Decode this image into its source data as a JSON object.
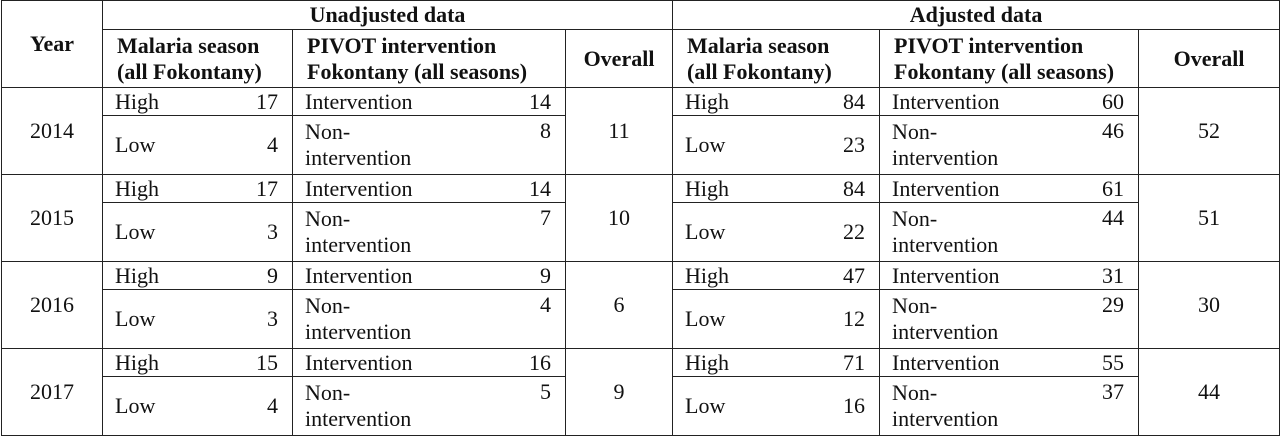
{
  "headers": {
    "year": "Year",
    "unadjusted": "Unadjusted data",
    "adjusted": "Adjusted data",
    "malaria_season": [
      "Malaria season",
      "(all Fokontany)"
    ],
    "pivot": [
      "PIVOT intervention",
      "Fokontany (all seasons)"
    ],
    "overall": "Overall"
  },
  "rows": [
    {
      "year": "2014",
      "unadj": {
        "high_label": "High",
        "high": "17",
        "low_label": "Low",
        "low": "4",
        "int_label": "Intervention",
        "int": "14",
        "non_label": [
          "Non-",
          "intervention"
        ],
        "non": "8",
        "overall": "11"
      },
      "adj": {
        "high_label": "High",
        "high": "84",
        "low_label": "Low",
        "low": "23",
        "int_label": "Intervention",
        "int": "60",
        "non_label": [
          "Non-",
          "intervention"
        ],
        "non": "46",
        "overall": "52"
      }
    },
    {
      "year": "2015",
      "unadj": {
        "high_label": "High",
        "high": "17",
        "low_label": "Low",
        "low": "3",
        "int_label": "Intervention",
        "int": "14",
        "non_label": [
          "Non-",
          "intervention"
        ],
        "non": "7",
        "overall": "10"
      },
      "adj": {
        "high_label": "High",
        "high": "84",
        "low_label": "Low",
        "low": "22",
        "int_label": "Intervention",
        "int": "61",
        "non_label": [
          "Non-",
          "intervention"
        ],
        "non": "44",
        "overall": "51"
      }
    },
    {
      "year": "2016",
      "unadj": {
        "high_label": "High",
        "high": "9",
        "low_label": "Low",
        "low": "3",
        "int_label": "Intervention",
        "int": "9",
        "non_label": [
          "Non-",
          "intervention"
        ],
        "non": "4",
        "overall": "6"
      },
      "adj": {
        "high_label": "High",
        "high": "47",
        "low_label": "Low",
        "low": "12",
        "int_label": "Intervention",
        "int": "31",
        "non_label": [
          "Non-",
          "intervention"
        ],
        "non": "29",
        "overall": "30"
      }
    },
    {
      "year": "2017",
      "unadj": {
        "high_label": "High",
        "high": "15",
        "low_label": "Low",
        "low": "4",
        "int_label": "Intervention",
        "int": "16",
        "non_label": [
          "Non-",
          "intervention"
        ],
        "non": "5",
        "overall": "9"
      },
      "adj": {
        "high_label": "High",
        "high": "71",
        "low_label": "Low",
        "low": "16",
        "int_label": "Intervention",
        "int": "55",
        "non_label": [
          "Non-",
          "intervention"
        ],
        "non": "37",
        "overall": "44"
      }
    }
  ]
}
